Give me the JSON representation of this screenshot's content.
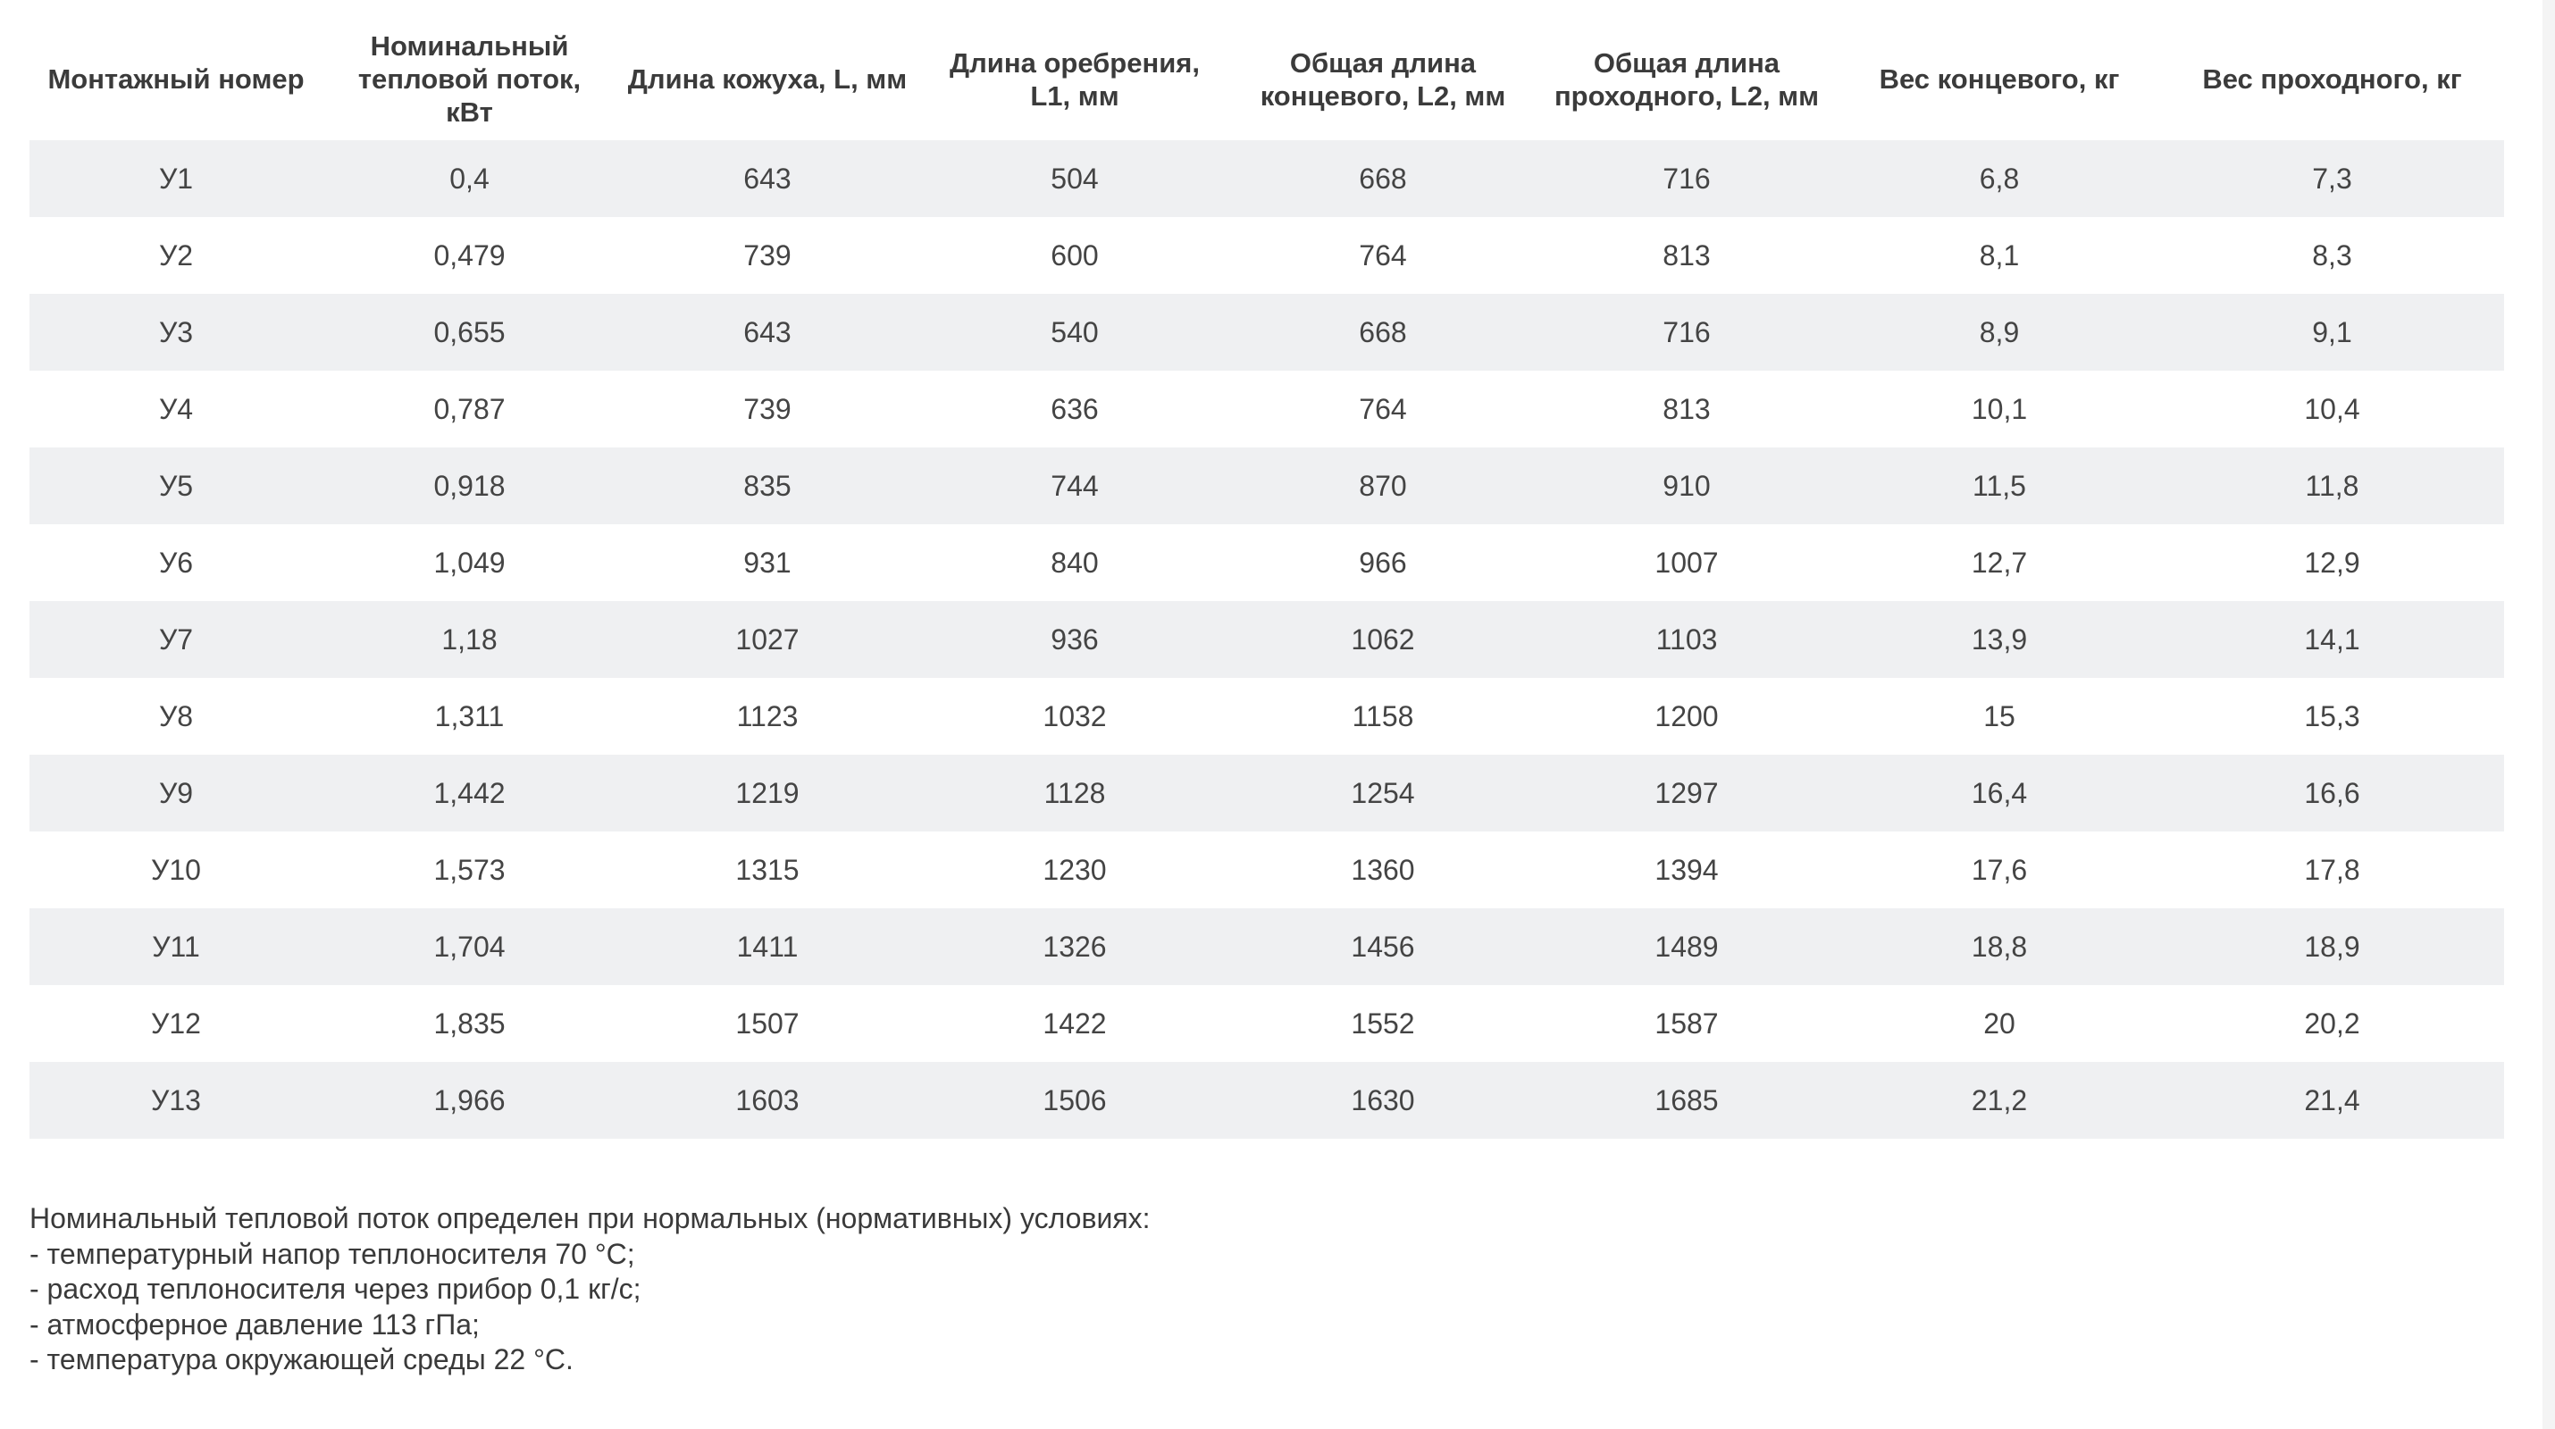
{
  "table": {
    "headers": [
      "Монтажный номер",
      "Номинальный тепловой поток, кВт",
      "Длина кожуха, L, мм",
      "Длина оребрения, L1, мм",
      "Общая длина концевого, L2, мм",
      "Общая длина проходного, L2, мм",
      "Вес концевого, кг",
      "Вес проходного, кг"
    ],
    "rows": [
      [
        "У1",
        "0,4",
        "643",
        "504",
        "668",
        "716",
        "6,8",
        "7,3"
      ],
      [
        "У2",
        "0,479",
        "739",
        "600",
        "764",
        "813",
        "8,1",
        "8,3"
      ],
      [
        "У3",
        "0,655",
        "643",
        "540",
        "668",
        "716",
        "8,9",
        "9,1"
      ],
      [
        "У4",
        "0,787",
        "739",
        "636",
        "764",
        "813",
        "10,1",
        "10,4"
      ],
      [
        "У5",
        "0,918",
        "835",
        "744",
        "870",
        "910",
        "11,5",
        "11,8"
      ],
      [
        "У6",
        "1,049",
        "931",
        "840",
        "966",
        "1007",
        "12,7",
        "12,9"
      ],
      [
        "У7",
        "1,18",
        "1027",
        "936",
        "1062",
        "1103",
        "13,9",
        "14,1"
      ],
      [
        "У8",
        "1,311",
        "1123",
        "1032",
        "1158",
        "1200",
        "15",
        "15,3"
      ],
      [
        "У9",
        "1,442",
        "1219",
        "1128",
        "1254",
        "1297",
        "16,4",
        "16,6"
      ],
      [
        "У10",
        "1,573",
        "1315",
        "1230",
        "1360",
        "1394",
        "17,6",
        "17,8"
      ],
      [
        "У11",
        "1,704",
        "1411",
        "1326",
        "1456",
        "1489",
        "18,8",
        "18,9"
      ],
      [
        "У12",
        "1,835",
        "1507",
        "1422",
        "1552",
        "1587",
        "20",
        "20,2"
      ],
      [
        "У13",
        "1,966",
        "1603",
        "1506",
        "1630",
        "1685",
        "21,2",
        "21,4"
      ]
    ]
  },
  "notes": {
    "intro": "Номинальный тепловой поток определен при нормальных (нормативных) условиях:",
    "items": [
      "- температурный напор теплоносителя 70 °С;",
      "- расход теплоносителя через прибор 0,1 кг/с;",
      "- атмосферное давление 113 гПа;",
      "- температура окружающей среды 22 °С."
    ]
  }
}
